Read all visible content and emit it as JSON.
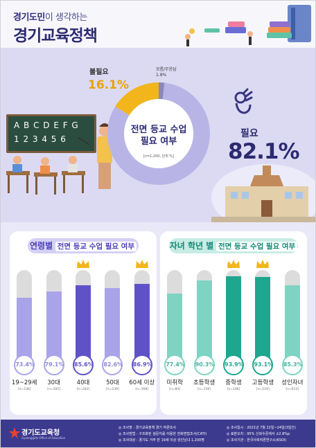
{
  "header": {
    "kicker_bold": "경기도민",
    "kicker_rest": "이 생각하는",
    "title": "경기교육정책"
  },
  "donut": {
    "center_title_1": "전면 등교 수업",
    "center_title_2": "필요 여부",
    "base": "[n=1,200, 단위 %]",
    "slices": [
      {
        "label": "필요",
        "value": 82.1,
        "display": "82.1%",
        "color": "#b8b5e6"
      },
      {
        "label": "불필요",
        "value": 16.1,
        "display": "16.1%",
        "color": "#f2b51c"
      },
      {
        "label": "모름/무응답",
        "value": 1.8,
        "display": "1.8%",
        "color": "#8b88b8"
      }
    ]
  },
  "panel_age": {
    "title_bold": "연령별",
    "title_rest": "전면 등교 수업 필요 여부",
    "accent": "#5f52c9",
    "light": "#a9a3ea"
  },
  "panel_school": {
    "title_bold": "자녀 학년 별",
    "title_rest": "전면 등교 수업 필요 여부",
    "accent": "#1ea68f",
    "light": "#7fd3c2"
  },
  "chart_data": [
    {
      "type": "bar",
      "title": "연령별 전면 등교 수업 필요 여부",
      "categories": [
        "19~29세",
        "30대",
        "40대",
        "50대",
        "60세 이상"
      ],
      "values": [
        73.4,
        79.1,
        85.6,
        82.6,
        86.9
      ],
      "labels": [
        "73.4%",
        "79.1%",
        "85.6%",
        "82.6%",
        "86.9%"
      ],
      "base": [
        "[n=236]",
        "[n=205]",
        "[n=242]",
        "[n=239]",
        "[n=308]"
      ],
      "highlighted": [
        false,
        false,
        true,
        false,
        true
      ],
      "ylim": [
        0,
        100
      ]
    },
    {
      "type": "bar",
      "title": "자녀 학년 별 전면 등교 수업 필요 여부",
      "categories": [
        "미취학",
        "초등학생",
        "중학생",
        "고등학생",
        "성인자녀"
      ],
      "values": [
        77.4,
        90.3,
        93.9,
        93.1,
        85.3
      ],
      "labels": [
        "77.4%",
        "90.3%",
        "93.9%",
        "93.1%",
        "85.3%"
      ],
      "base": [
        "[n=84]",
        "[n=156]",
        "[n=106]",
        "[n=116]",
        "[n=613]"
      ],
      "highlighted": [
        false,
        false,
        true,
        true,
        false
      ],
      "ylim": [
        0,
        100
      ]
    }
  ],
  "blackboard": {
    "row1": "A B C D E F G",
    "row2": "1 2 3 4 5 6"
  },
  "footer": {
    "org": "경기도교육청",
    "org_sub": "Gyeonggido Office of Education",
    "left_notes": [
      "◎ 조사명 : 경기교육정책 경기 여론조사",
      "◎ 조사방법 : 구조화된 설문지를 이용한 전화면접조사(CATI)",
      "◎ 조사대상 : 경기도 거주 만 19세 이상 성인남녀 1,200명"
    ],
    "right_notes": [
      "◎ 조사일시 : 2021년 7월 22일~24일(3일간)",
      "◎ 표본오차 : 95% 신뢰수준에서 ±2.8%p",
      "◎ 조사기관 : 한국사회여론연구소(KSOI)"
    ]
  }
}
